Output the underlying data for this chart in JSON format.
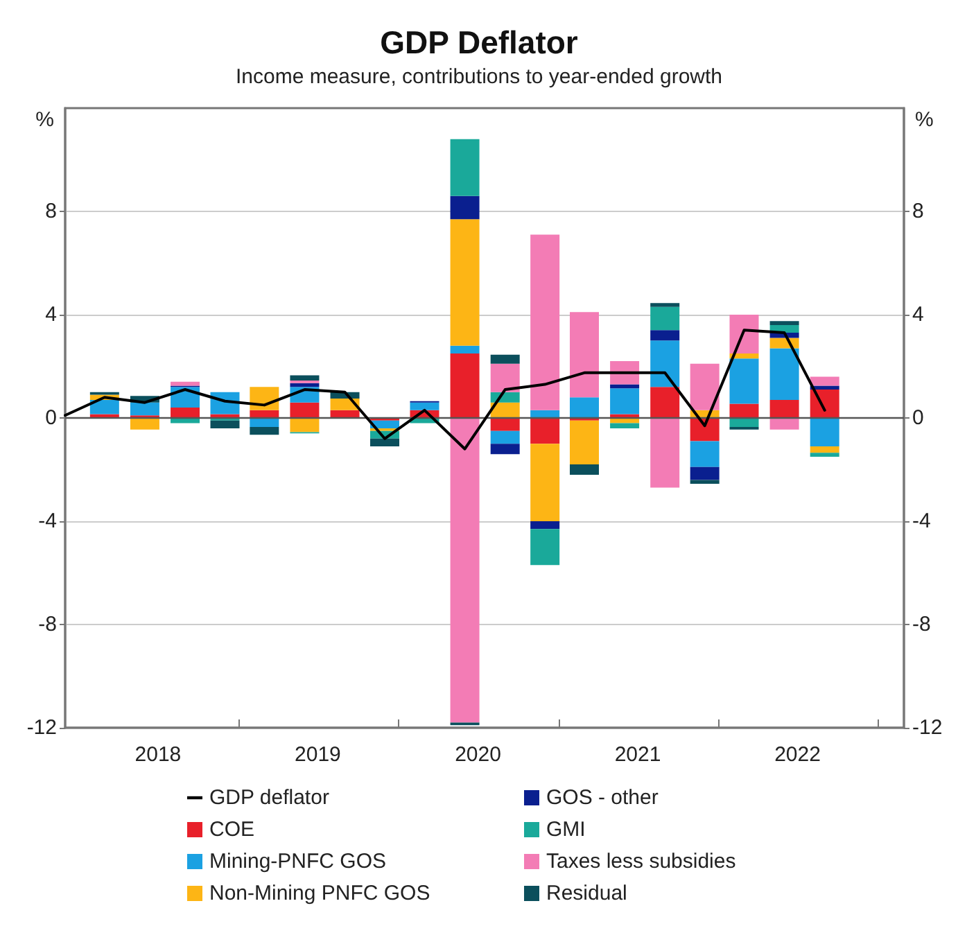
{
  "chart_data": {
    "type": "bar",
    "title": "GDP Deflator",
    "subtitle": "Income measure, contributions to year-ended growth",
    "ylabel": "%",
    "y2label": "%",
    "x": [
      "2018-03",
      "2018-06",
      "2018-09",
      "2018-12",
      "2019-03",
      "2019-06",
      "2019-09",
      "2019-12",
      "2020-03",
      "2020-06",
      "2020-09",
      "2020-12",
      "2021-03",
      "2021-06",
      "2021-09",
      "2021-12",
      "2022-03",
      "2022-06",
      "2022-09"
    ],
    "stacked": true,
    "series": [
      {
        "name": "GDP deflator",
        "type": "line",
        "color": "#000000",
        "x": [
          "2017-12",
          "2018-03",
          "2018-06",
          "2018-09",
          "2018-12",
          "2019-03",
          "2019-06",
          "2019-09",
          "2019-12",
          "2020-03",
          "2020-06",
          "2020-09",
          "2020-12",
          "2021-03",
          "2021-06",
          "2021-09",
          "2021-12",
          "2022-03",
          "2022-06",
          "2022-09"
        ],
        "values": [
          0.1,
          0.8,
          0.6,
          1.1,
          0.65,
          0.5,
          1.1,
          1.0,
          -0.8,
          0.3,
          -1.2,
          1.1,
          1.3,
          1.75,
          1.75,
          1.75,
          -0.3,
          3.4,
          3.3,
          0.3
        ]
      },
      {
        "name": "COE",
        "color": "#e8202a",
        "values": [
          0.15,
          0.1,
          0.4,
          0.15,
          0.3,
          0.6,
          0.3,
          -0.1,
          0.3,
          2.5,
          -0.5,
          -1.0,
          -0.1,
          0.15,
          1.2,
          -0.9,
          0.55,
          0.7,
          1.1
        ]
      },
      {
        "name": "Mining-PNFC GOS",
        "color": "#1ba1e2",
        "values": [
          0.55,
          0.5,
          0.8,
          0.85,
          -0.35,
          0.6,
          0,
          -0.3,
          0.3,
          0.3,
          -0.5,
          0.3,
          0.8,
          1.0,
          1.8,
          -1.0,
          1.75,
          2.0,
          -1.1
        ]
      },
      {
        "name": "Non-Mining PNFC GOS",
        "color": "#fdb515",
        "values": [
          0.2,
          -0.45,
          0,
          0,
          0.9,
          -0.55,
          0.45,
          -0.1,
          0,
          4.9,
          0.6,
          -3.0,
          -1.7,
          -0.2,
          0,
          0.3,
          0.2,
          0.4,
          -0.25
        ]
      },
      {
        "name": "GOS - other",
        "color": "#0a1f8f",
        "values": [
          0,
          0,
          0.05,
          0,
          0,
          0.15,
          0,
          0,
          0.05,
          0.9,
          -0.4,
          -0.3,
          0,
          0.15,
          0.4,
          -0.5,
          0,
          0.2,
          0.15
        ]
      },
      {
        "name": "GMI",
        "color": "#1aa99a",
        "values": [
          0,
          null,
          -0.2,
          -0.1,
          0,
          -0.05,
          0,
          -0.3,
          -0.2,
          2.2,
          0.4,
          -1.4,
          0,
          -0.2,
          0.9,
          0,
          -0.35,
          0.3,
          -0.15
        ]
      },
      {
        "name": "Taxes less subsidies",
        "color": "#f37cb5",
        "values": [
          0,
          0,
          0.15,
          0,
          0,
          0.1,
          0,
          0,
          0,
          -11.8,
          1.1,
          6.8,
          3.3,
          0.9,
          -2.7,
          1.8,
          1.5,
          -0.45,
          0.35
        ]
      },
      {
        "name": "Residual",
        "color": "#0b4f5c",
        "values": [
          0.1,
          0.25,
          0,
          -0.3,
          -0.3,
          0.2,
          0.25,
          -0.3,
          0,
          -0.1,
          0.35,
          0,
          -0.4,
          0,
          0.15,
          -0.15,
          -0.1,
          0.15,
          0
        ]
      }
    ],
    "xlim": [
      "2017-12",
      "2023-03"
    ],
    "xticks": [
      {
        "value": "2019-01",
        "label": null
      },
      {
        "value": "2020-01",
        "label": null
      },
      {
        "value": "2021-01",
        "label": null
      },
      {
        "value": "2022-01",
        "label": null
      },
      {
        "value": "2023-01",
        "label": null
      },
      {
        "value": "2018-07",
        "label": "2018"
      },
      {
        "value": "2019-07",
        "label": "2019"
      },
      {
        "value": "2020-07",
        "label": "2020"
      },
      {
        "value": "2021-07",
        "label": "2021"
      },
      {
        "value": "2022-07",
        "label": "2022"
      }
    ],
    "ylim": [
      -12,
      12
    ],
    "yticks": [
      -12,
      -8,
      -4,
      0,
      4,
      8
    ],
    "y2lim": [
      -12,
      12
    ],
    "y2ticks": [
      -12,
      -8,
      -4,
      0,
      4,
      8
    ],
    "ref_lines": [
      {
        "axis": "y",
        "value": 0,
        "color": "#555555"
      }
    ],
    "grid": "y",
    "legend": "bottom",
    "marker": "none",
    "line_style": "solid"
  }
}
